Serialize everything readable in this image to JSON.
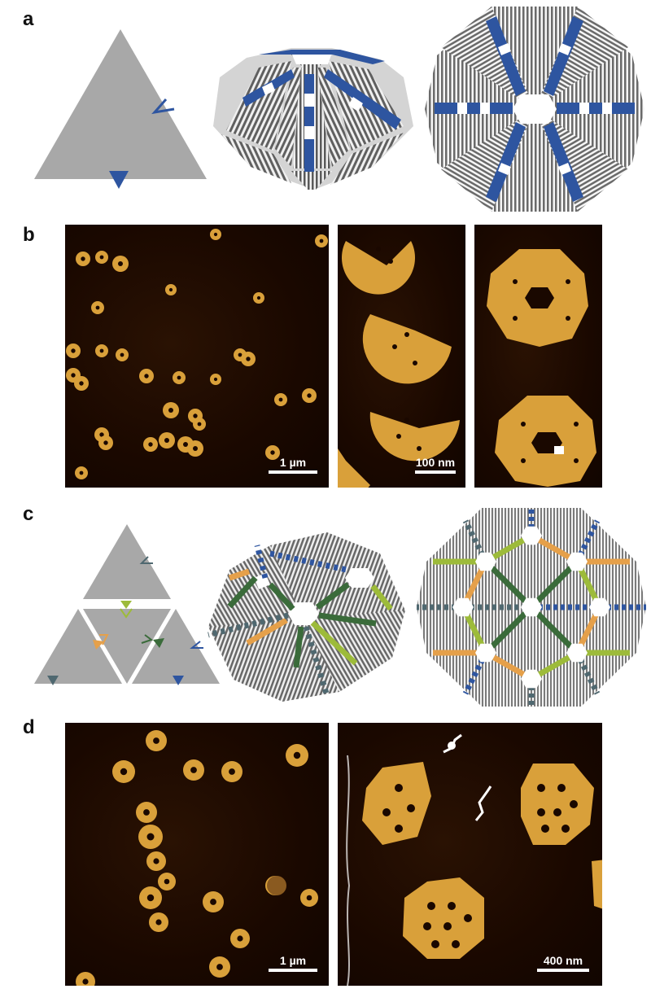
{
  "panels": {
    "a": {
      "label": "a"
    },
    "b": {
      "label": "b",
      "scale_bars": [
        "1 µm",
        "100 nm"
      ]
    },
    "c": {
      "label": "c"
    },
    "d": {
      "label": "d",
      "scale_bars": [
        "1 µm",
        "400 nm"
      ]
    }
  },
  "colors": {
    "gray_fill": "#a8a8a8",
    "blue_marker": "#2e55a0",
    "dark_green": "#3a6b3a",
    "light_green": "#9dbb3a",
    "orange": "#e5a04a",
    "slate": "#4f6870",
    "afm_background": "#1a0800",
    "afm_object": "#d9a03a"
  }
}
